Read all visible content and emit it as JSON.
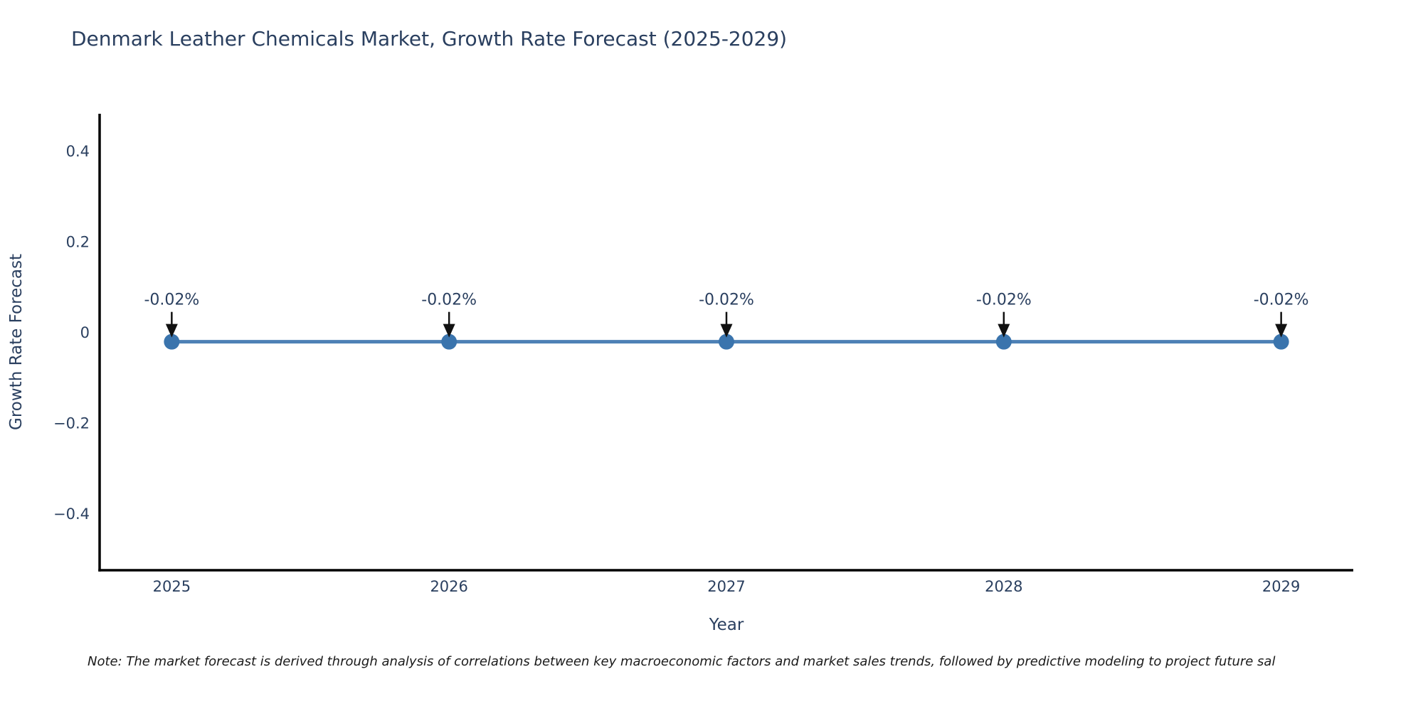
{
  "title": "Denmark Leather Chemicals Market, Growth Rate Forecast (2025-2029)",
  "note": "Note: The market forecast is derived through analysis of correlations between key macroeconomic factors and market sales trends, followed by predictive modeling to project future sal",
  "chart_data": {
    "type": "line",
    "title": "Denmark Leather Chemicals Market, Growth Rate Forecast (2025-2029)",
    "x": [
      2025,
      2026,
      2027,
      2028,
      2029
    ],
    "y": [
      -0.02,
      -0.02,
      -0.02,
      -0.02,
      -0.02
    ],
    "point_labels": [
      "-0.02%",
      "-0.02%",
      "-0.02%",
      "-0.02%",
      "-0.02%"
    ],
    "xlabel": "Year",
    "ylabel": "Growth Rate Forecast",
    "xticks": [
      2025,
      2026,
      2027,
      2028,
      2029
    ],
    "xtick_labels": [
      "2025",
      "2026",
      "2027",
      "2028",
      "2029"
    ],
    "yticks": [
      0.4,
      0.2,
      0,
      -0.2,
      -0.4
    ],
    "ytick_labels": [
      "0.4",
      "0.2",
      "0",
      "−0.2",
      "−0.4"
    ],
    "xlim": [
      2024.74,
      2029.26
    ],
    "ylim": [
      -0.524,
      0.483
    ],
    "grid": false,
    "legend": false,
    "colors": {
      "line": "#4d81b5",
      "marker": "#3a74ad",
      "axis": "#000000",
      "tick_text": "#2a3f5f",
      "axis_label_text": "#2a3f5f",
      "annotation_text": "#2a3f5f",
      "arrow": "#111111",
      "title": "#2a3f5f",
      "note_text": "#1a1a1a",
      "background": "#ffffff"
    }
  }
}
